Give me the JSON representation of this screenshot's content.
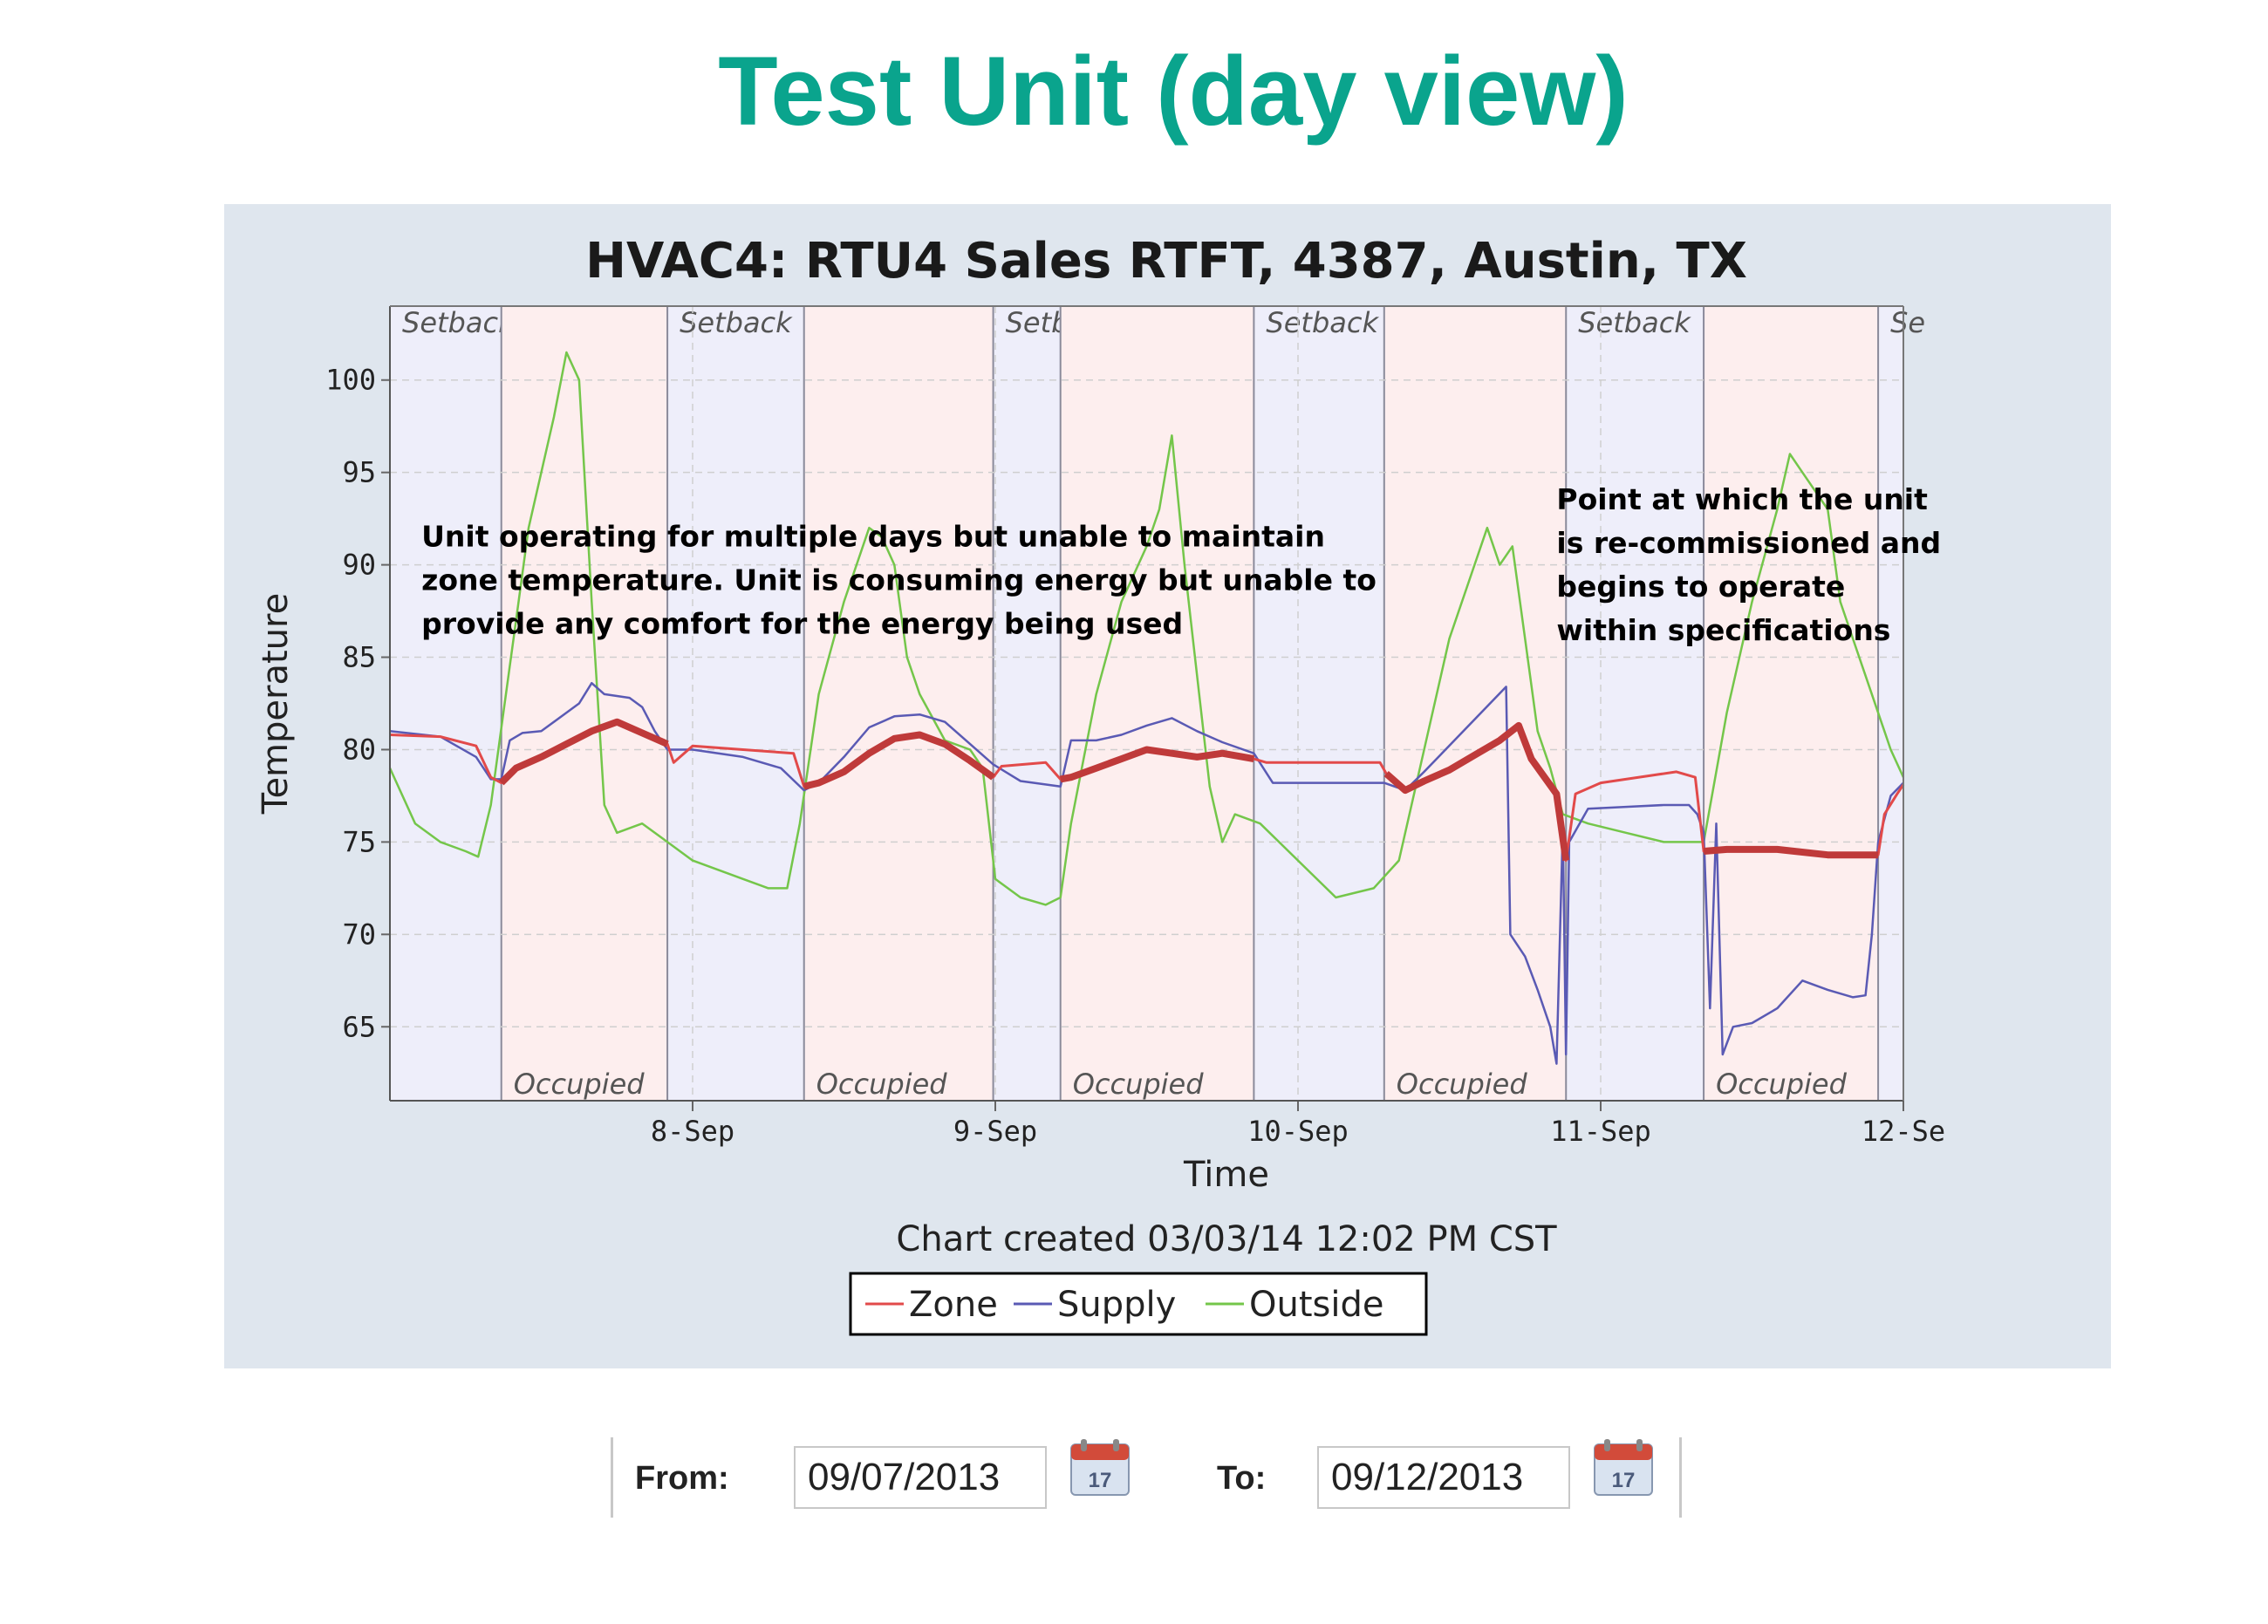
{
  "page_title": "Test Unit (day view)",
  "colors": {
    "title": "#0aa48d",
    "panel_bg": "#dfe6ee",
    "zone": "#e24a4a",
    "zone_heavy": "#bf3a3a",
    "supply": "#5a5ab4",
    "outside": "#74c64a",
    "setback_shade": "#eeeefa",
    "occupied_shade": "#fdeeee"
  },
  "chart_data": {
    "type": "line",
    "title": "HVAC4: RTU4 Sales RTFT, 4387, Austin, TX",
    "xlabel": "Time",
    "ylabel": "Temperature",
    "ylim": [
      61,
      104
    ],
    "xlim": [
      "2013-09-07 00:00",
      "2013-09-12 00:00"
    ],
    "y_ticks": [
      100,
      95,
      90,
      85,
      80,
      75,
      70,
      65
    ],
    "x_ticks": [
      {
        "x": "2013-09-08 00:00",
        "label": "8-Sep"
      },
      {
        "x": "2013-09-09 00:00",
        "label": "9-Sep"
      },
      {
        "x": "2013-09-10 00:00",
        "label": "10-Sep"
      },
      {
        "x": "2013-09-11 00:00",
        "label": "11-Sep"
      },
      {
        "x": "2013-09-12 00:00",
        "label": "12-Se"
      }
    ],
    "grid": true,
    "footnote": "Chart created 03/03/14 12:02 PM CST",
    "legend_position": "bottom-center",
    "schedule_bands": [
      {
        "start": "2013-09-07 00:00",
        "end": "2013-09-07 08:50",
        "mode": "setback",
        "label": "Setback"
      },
      {
        "start": "2013-09-07 08:50",
        "end": "2013-09-07 22:00",
        "mode": "occupied",
        "label": "Occupied"
      },
      {
        "start": "2013-09-07 22:00",
        "end": "2013-09-08 08:50",
        "mode": "setback",
        "label": "Setback"
      },
      {
        "start": "2013-09-08 08:50",
        "end": "2013-09-08 23:50",
        "mode": "occupied",
        "label": "Occupied"
      },
      {
        "start": "2013-09-08 23:50",
        "end": "2013-09-09 05:10",
        "mode": "setback",
        "label": "Setback"
      },
      {
        "start": "2013-09-09 05:10",
        "end": "2013-09-09 20:30",
        "mode": "occupied",
        "label": "Occupied"
      },
      {
        "start": "2013-09-09 20:30",
        "end": "2013-09-10 06:50",
        "mode": "setback",
        "label": "Setback"
      },
      {
        "start": "2013-09-10 06:50",
        "end": "2013-09-10 21:15",
        "mode": "occupied",
        "label": "Occupied"
      },
      {
        "start": "2013-09-10 21:15",
        "end": "2013-09-11 08:10",
        "mode": "setback",
        "label": "Setback"
      },
      {
        "start": "2013-09-11 08:10",
        "end": "2013-09-11 22:00",
        "mode": "occupied",
        "label": "Occupied"
      },
      {
        "start": "2013-09-11 22:00",
        "end": "2013-09-12 00:00",
        "mode": "setback",
        "label": "Se"
      }
    ],
    "annotations": [
      {
        "x": "2013-09-07 02:30",
        "y": 91,
        "lines": [
          "Unit operating for multiple  days but unable to maintain",
          "zone temperature.  Unit is consuming energy but unable to",
          "provide any comfort for the energy being used"
        ]
      },
      {
        "x": "2013-09-10 20:30",
        "y": 93,
        "lines": [
          "Point at which the unit",
          "is re-commissioned and",
          "begins to operate",
          "within specifications"
        ]
      }
    ],
    "series": [
      {
        "name": "Zone",
        "color": "#e24a4a",
        "points": [
          [
            "2013-09-07 00:00",
            80.8
          ],
          [
            "2013-09-07 04:00",
            80.7
          ],
          [
            "2013-09-07 06:50",
            80.2
          ],
          [
            "2013-09-07 08:00",
            78.5
          ],
          [
            "2013-09-07 08:50",
            78.2
          ],
          [
            "2013-09-07 10:00",
            79.0
          ],
          [
            "2013-09-07 12:00",
            79.6
          ],
          [
            "2013-09-07 14:00",
            80.3
          ],
          [
            "2013-09-07 16:00",
            81.0
          ],
          [
            "2013-09-07 18:00",
            81.5
          ],
          [
            "2013-09-07 20:00",
            80.9
          ],
          [
            "2013-09-07 22:00",
            80.3
          ],
          [
            "2013-09-07 22:30",
            79.3
          ],
          [
            "2013-09-08 00:00",
            80.2
          ],
          [
            "2013-09-08 04:00",
            80.0
          ],
          [
            "2013-09-08 08:00",
            79.8
          ],
          [
            "2013-09-08 08:50",
            78.0
          ],
          [
            "2013-09-08 10:00",
            78.2
          ],
          [
            "2013-09-08 12:00",
            78.8
          ],
          [
            "2013-09-08 14:00",
            79.8
          ],
          [
            "2013-09-08 16:00",
            80.6
          ],
          [
            "2013-09-08 18:00",
            80.8
          ],
          [
            "2013-09-08 20:00",
            80.3
          ],
          [
            "2013-09-08 22:00",
            79.4
          ],
          [
            "2013-09-08 23:50",
            78.5
          ],
          [
            "2013-09-09 00:30",
            79.1
          ],
          [
            "2013-09-09 04:00",
            79.3
          ],
          [
            "2013-09-09 05:10",
            78.4
          ],
          [
            "2013-09-09 06:00",
            78.5
          ],
          [
            "2013-09-09 08:00",
            79.0
          ],
          [
            "2013-09-09 10:00",
            79.5
          ],
          [
            "2013-09-09 12:00",
            80.0
          ],
          [
            "2013-09-09 14:00",
            79.8
          ],
          [
            "2013-09-09 16:00",
            79.6
          ],
          [
            "2013-09-09 18:00",
            79.8
          ],
          [
            "2013-09-09 20:30",
            79.5
          ],
          [
            "2013-09-09 21:30",
            79.3
          ],
          [
            "2013-09-10 06:30",
            79.3
          ],
          [
            "2013-09-10 07:00",
            78.7
          ],
          [
            "2013-09-10 08:30",
            77.8
          ],
          [
            "2013-09-10 10:00",
            78.3
          ],
          [
            "2013-09-10 12:00",
            78.9
          ],
          [
            "2013-09-10 14:00",
            79.7
          ],
          [
            "2013-09-10 16:00",
            80.5
          ],
          [
            "2013-09-10 17:30",
            81.3
          ],
          [
            "2013-09-10 18:30",
            79.5
          ],
          [
            "2013-09-10 20:30",
            77.6
          ],
          [
            "2013-09-10 21:15",
            74.0
          ],
          [
            "2013-09-10 22:00",
            77.6
          ],
          [
            "2013-09-11 00:00",
            78.2
          ],
          [
            "2013-09-11 04:00",
            78.6
          ],
          [
            "2013-09-11 06:00",
            78.8
          ],
          [
            "2013-09-11 07:30",
            78.5
          ],
          [
            "2013-09-11 08:10",
            74.5
          ],
          [
            "2013-09-11 10:00",
            74.6
          ],
          [
            "2013-09-11 14:00",
            74.6
          ],
          [
            "2013-09-11 18:00",
            74.3
          ],
          [
            "2013-09-11 22:00",
            74.3
          ],
          [
            "2013-09-11 22:30",
            76.5
          ],
          [
            "2013-09-11 23:30",
            77.6
          ],
          [
            "2013-09-12 00:00",
            78.1
          ]
        ]
      },
      {
        "name": "Supply",
        "color": "#5a5ab4",
        "points": [
          [
            "2013-09-07 00:00",
            81.0
          ],
          [
            "2013-09-07 04:00",
            80.7
          ],
          [
            "2013-09-07 06:50",
            79.6
          ],
          [
            "2013-09-07 08:00",
            78.4
          ],
          [
            "2013-09-07 08:50",
            78.4
          ],
          [
            "2013-09-07 09:30",
            80.5
          ],
          [
            "2013-09-07 10:30",
            80.9
          ],
          [
            "2013-09-07 12:00",
            81.0
          ],
          [
            "2013-09-07 14:00",
            82.0
          ],
          [
            "2013-09-07 15:00",
            82.5
          ],
          [
            "2013-09-07 16:00",
            83.6
          ],
          [
            "2013-09-07 17:00",
            83.0
          ],
          [
            "2013-09-07 19:00",
            82.8
          ],
          [
            "2013-09-07 20:00",
            82.3
          ],
          [
            "2013-09-07 21:00",
            81.0
          ],
          [
            "2013-09-07 22:00",
            80.0
          ],
          [
            "2013-09-08 00:00",
            80.0
          ],
          [
            "2013-09-08 04:00",
            79.6
          ],
          [
            "2013-09-08 07:00",
            79.0
          ],
          [
            "2013-09-08 08:50",
            77.8
          ],
          [
            "2013-09-08 10:00",
            78.2
          ],
          [
            "2013-09-08 12:00",
            79.6
          ],
          [
            "2013-09-08 14:00",
            81.2
          ],
          [
            "2013-09-08 16:00",
            81.8
          ],
          [
            "2013-09-08 18:00",
            81.9
          ],
          [
            "2013-09-08 20:00",
            81.5
          ],
          [
            "2013-09-08 22:00",
            80.3
          ],
          [
            "2013-09-08 23:50",
            79.2
          ],
          [
            "2013-09-09 02:00",
            78.3
          ],
          [
            "2013-09-09 05:10",
            78.0
          ],
          [
            "2013-09-09 06:00",
            80.5
          ],
          [
            "2013-09-09 08:00",
            80.5
          ],
          [
            "2013-09-09 10:00",
            80.8
          ],
          [
            "2013-09-09 12:00",
            81.3
          ],
          [
            "2013-09-09 14:00",
            81.7
          ],
          [
            "2013-09-09 16:00",
            81.0
          ],
          [
            "2013-09-09 18:00",
            80.4
          ],
          [
            "2013-09-09 20:30",
            79.8
          ],
          [
            "2013-09-09 22:00",
            78.2
          ],
          [
            "2013-09-10 06:50",
            78.2
          ],
          [
            "2013-09-10 08:30",
            77.8
          ],
          [
            "2013-09-10 10:00",
            78.8
          ],
          [
            "2013-09-10 16:30",
            83.4
          ],
          [
            "2013-09-10 16:50",
            70.0
          ],
          [
            "2013-09-10 18:00",
            68.8
          ],
          [
            "2013-09-10 19:00",
            67.0
          ],
          [
            "2013-09-10 20:00",
            65.0
          ],
          [
            "2013-09-10 20:30",
            63.0
          ],
          [
            "2013-09-10 21:00",
            75.8
          ],
          [
            "2013-09-10 21:15",
            63.5
          ],
          [
            "2013-09-10 21:30",
            75.0
          ],
          [
            "2013-09-10 23:00",
            76.8
          ],
          [
            "2013-09-11 02:00",
            76.9
          ],
          [
            "2013-09-11 05:00",
            77.0
          ],
          [
            "2013-09-11 07:00",
            77.0
          ],
          [
            "2013-09-11 07:40",
            76.5
          ],
          [
            "2013-09-11 08:10",
            75.5
          ],
          [
            "2013-09-11 08:40",
            66.0
          ],
          [
            "2013-09-11 09:10",
            76.0
          ],
          [
            "2013-09-11 09:40",
            63.5
          ],
          [
            "2013-09-11 10:30",
            65.0
          ],
          [
            "2013-09-11 12:00",
            65.2
          ],
          [
            "2013-09-11 14:00",
            66.0
          ],
          [
            "2013-09-11 16:00",
            67.5
          ],
          [
            "2013-09-11 18:00",
            67.0
          ],
          [
            "2013-09-11 20:00",
            66.6
          ],
          [
            "2013-09-11 21:00",
            66.7
          ],
          [
            "2013-09-11 21:30",
            70.0
          ],
          [
            "2013-09-11 22:00",
            75.0
          ],
          [
            "2013-09-11 23:00",
            77.5
          ],
          [
            "2013-09-12 00:00",
            78.2
          ]
        ]
      },
      {
        "name": "Outside",
        "color": "#74c64a",
        "points": [
          [
            "2013-09-07 00:00",
            79.0
          ],
          [
            "2013-09-07 02:00",
            76.0
          ],
          [
            "2013-09-07 04:00",
            75.0
          ],
          [
            "2013-09-07 06:00",
            74.5
          ],
          [
            "2013-09-07 07:00",
            74.2
          ],
          [
            "2013-09-07 08:00",
            77.0
          ],
          [
            "2013-09-07 09:00",
            82.0
          ],
          [
            "2013-09-07 10:00",
            87.0
          ],
          [
            "2013-09-07 11:00",
            92.0
          ],
          [
            "2013-09-07 12:00",
            95.0
          ],
          [
            "2013-09-07 13:00",
            98.0
          ],
          [
            "2013-09-07 14:00",
            101.5
          ],
          [
            "2013-09-07 15:00",
            100.0
          ],
          [
            "2013-09-07 16:00",
            88.0
          ],
          [
            "2013-09-07 17:00",
            77.0
          ],
          [
            "2013-09-07 18:00",
            75.5
          ],
          [
            "2013-09-07 20:00",
            76.0
          ],
          [
            "2013-09-07 22:00",
            75.0
          ],
          [
            "2013-09-08 00:00",
            74.0
          ],
          [
            "2013-09-08 02:00",
            73.5
          ],
          [
            "2013-09-08 04:00",
            73.0
          ],
          [
            "2013-09-08 06:00",
            72.5
          ],
          [
            "2013-09-08 07:30",
            72.5
          ],
          [
            "2013-09-08 08:30",
            76.0
          ],
          [
            "2013-09-08 10:00",
            83.0
          ],
          [
            "2013-09-08 12:00",
            88.0
          ],
          [
            "2013-09-08 14:00",
            92.0
          ],
          [
            "2013-09-08 15:00",
            91.5
          ],
          [
            "2013-09-08 16:00",
            90.0
          ],
          [
            "2013-09-08 17:00",
            85.0
          ],
          [
            "2013-09-08 18:00",
            83.0
          ],
          [
            "2013-09-08 20:00",
            80.5
          ],
          [
            "2013-09-08 22:00",
            80.0
          ],
          [
            "2013-09-08 23:00",
            79.0
          ],
          [
            "2013-09-09 00:00",
            73.0
          ],
          [
            "2013-09-09 02:00",
            72.0
          ],
          [
            "2013-09-09 04:00",
            71.6
          ],
          [
            "2013-09-09 05:10",
            72.0
          ],
          [
            "2013-09-09 06:00",
            76.0
          ],
          [
            "2013-09-09 08:00",
            83.0
          ],
          [
            "2013-09-09 10:00",
            88.0
          ],
          [
            "2013-09-09 12:00",
            91.0
          ],
          [
            "2013-09-09 13:00",
            93.0
          ],
          [
            "2013-09-09 14:00",
            97.0
          ],
          [
            "2013-09-09 15:00",
            90.0
          ],
          [
            "2013-09-09 16:00",
            84.0
          ],
          [
            "2013-09-09 17:00",
            78.0
          ],
          [
            "2013-09-09 18:00",
            75.0
          ],
          [
            "2013-09-09 19:00",
            76.5
          ],
          [
            "2013-09-09 21:00",
            76.0
          ],
          [
            "2013-09-10 00:00",
            74.0
          ],
          [
            "2013-09-10 03:00",
            72.0
          ],
          [
            "2013-09-10 06:00",
            72.5
          ],
          [
            "2013-09-10 08:00",
            74.0
          ],
          [
            "2013-09-10 10:00",
            80.0
          ],
          [
            "2013-09-10 12:00",
            86.0
          ],
          [
            "2013-09-10 14:00",
            90.0
          ],
          [
            "2013-09-10 15:00",
            92.0
          ],
          [
            "2013-09-10 16:00",
            90.0
          ],
          [
            "2013-09-10 17:00",
            91.0
          ],
          [
            "2013-09-10 18:00",
            86.0
          ],
          [
            "2013-09-10 19:00",
            81.0
          ],
          [
            "2013-09-10 20:00",
            79.0
          ],
          [
            "2013-09-10 21:00",
            76.5
          ],
          [
            "2013-09-10 23:00",
            76.0
          ],
          [
            "2013-09-11 02:00",
            75.5
          ],
          [
            "2013-09-11 05:00",
            75.0
          ],
          [
            "2013-09-11 08:10",
            75.0
          ],
          [
            "2013-09-11 10:00",
            82.0
          ],
          [
            "2013-09-11 12:00",
            88.0
          ],
          [
            "2013-09-11 14:00",
            93.0
          ],
          [
            "2013-09-11 15:00",
            96.0
          ],
          [
            "2013-09-11 16:00",
            95.0
          ],
          [
            "2013-09-11 18:00",
            93.0
          ],
          [
            "2013-09-11 19:00",
            88.0
          ],
          [
            "2013-09-11 21:00",
            84.0
          ],
          [
            "2013-09-11 23:00",
            80.0
          ],
          [
            "2013-09-12 00:00",
            78.5
          ]
        ]
      }
    ]
  },
  "date_range": {
    "from_label": "From:",
    "from_value": "09/07/2013",
    "to_label": "To:",
    "to_value": "09/12/2013",
    "calendar_day": "17",
    "calendar_icon": "calendar-icon"
  }
}
